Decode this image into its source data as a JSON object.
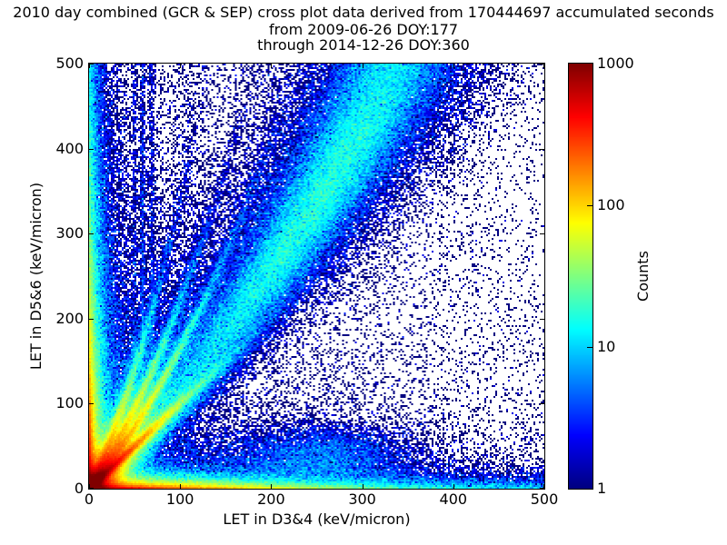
{
  "chart_data": {
    "type": "heatmap",
    "title": "2010 day combined (GCR & SEP) cross plot data derived from 170444697 accumulated seconds",
    "subtitle_from": "from 2009-06-26 DOY:177",
    "subtitle_through": "through 2014-12-26 DOY:360",
    "xlabel": "LET in D3&4 (keV/micron)",
    "ylabel": "LET in D5&6 (keV/micron)",
    "xlim": [
      0,
      500
    ],
    "ylim": [
      0,
      500
    ],
    "x_ticks": [
      0,
      100,
      200,
      300,
      400,
      500
    ],
    "y_ticks": [
      0,
      100,
      200,
      300,
      400,
      500
    ],
    "grid": false,
    "background_color": "#ffffff",
    "empty_bin_color": "#ffffff",
    "bins": [
      250,
      234
    ],
    "colorbar": {
      "label": "Counts",
      "scale": "log",
      "min": 1,
      "max": 1000,
      "ticks": [
        1,
        10,
        100,
        1000
      ],
      "position": "right"
    },
    "colormap": {
      "name": "jet",
      "stops": [
        {
          "t": 0.0,
          "c": "#000080"
        },
        {
          "t": 0.125,
          "c": "#0000ff"
        },
        {
          "t": 0.375,
          "c": "#00ffff"
        },
        {
          "t": 0.5,
          "c": "#80ff80"
        },
        {
          "t": 0.625,
          "c": "#ffff00"
        },
        {
          "t": 0.75,
          "c": "#ff8000"
        },
        {
          "t": 0.875,
          "c": "#ff0000"
        },
        {
          "t": 1.0,
          "c": "#800000"
        }
      ]
    },
    "density_model_counts_per_bin": [
      {
        "type": "radial",
        "amp": 2200,
        "scale": 9,
        "note": "origin hotspot, saturated dark red"
      },
      {
        "type": "ridge",
        "slope": 1.0,
        "curve": 0,
        "amp": 900,
        "width": 3,
        "decay": 40,
        "note": "bright equal-LET diagonal, red to ~(30,30), yellow to ~(70,70)"
      },
      {
        "type": "ridge",
        "slope": 1.0,
        "curve": 0,
        "amp": 130,
        "width": 9,
        "decay": 60
      },
      {
        "type": "ridge",
        "slope": 1.25,
        "curve": 0.004,
        "amp": 230,
        "width": 3.5,
        "decay": 70,
        "note": "fan streak 1"
      },
      {
        "type": "ridge",
        "slope": 1.25,
        "curve": 0.004,
        "amp": 55,
        "width": 9,
        "decay": 95
      },
      {
        "type": "ridge",
        "slope": 1.6,
        "curve": 0.006,
        "amp": 210,
        "width": 3.5,
        "decay": 65,
        "note": "fan streak 2"
      },
      {
        "type": "ridge",
        "slope": 1.6,
        "curve": 0.006,
        "amp": 50,
        "width": 9,
        "decay": 90
      },
      {
        "type": "ridge",
        "slope": 2.2,
        "curve": 0.012,
        "amp": 180,
        "width": 3.5,
        "decay": 60,
        "note": "fan streak 3"
      },
      {
        "type": "ridge",
        "slope": 2.2,
        "curve": 0.012,
        "amp": 45,
        "width": 9,
        "decay": 85
      },
      {
        "type": "exp2",
        "amp": 700,
        "sx": 70,
        "sy": 3,
        "note": "hot band hugging x-axis"
      },
      {
        "type": "exp2",
        "amp": 120,
        "sx": 150,
        "sy": 8
      },
      {
        "type": "exp2",
        "amp": 8,
        "sx": 600,
        "sy": 5,
        "note": "cyan speckle along bottom edge to x=500"
      },
      {
        "type": "exp2",
        "amp": 2.5,
        "sx": 900,
        "sy": 12
      },
      {
        "type": "exp2",
        "amp": 4,
        "sx": 250,
        "sy": 25
      },
      {
        "type": "exp2",
        "amp": 600,
        "sx": 3,
        "sy": 60,
        "note": "hot band hugging y-axis"
      },
      {
        "type": "exp2",
        "amp": 100,
        "sx": 8,
        "sy": 200
      },
      {
        "type": "exp2",
        "amp": 7,
        "sx": 5,
        "sy": 700,
        "note": "cyan left-edge column to y=500"
      },
      {
        "type": "exp2",
        "amp": 3,
        "sx": 14,
        "sy": 500
      },
      {
        "type": "exp2",
        "amp": 15,
        "sx": 35,
        "sy": 120,
        "note": "dense wedge above diagonal near origin"
      },
      {
        "type": "band",
        "a": 0.9,
        "b": -0.00046,
        "sigma0": 9,
        "sigma1": 0.045,
        "amp": 13,
        "peak_y": 340,
        "peak_w": 260,
        "note": "broad correlation band reaching top at x~300-370"
      },
      {
        "type": "band",
        "a": 0.9,
        "b": -0.00046,
        "sigma0": 20,
        "sigma1": 0.09,
        "amp": 3.5,
        "peak_y": 340,
        "peak_w": 300
      },
      {
        "type": "vstripe",
        "x0": 50,
        "amp": 1.8,
        "sigma": 1.6,
        "ydecay": 900,
        "note": "vertical streak"
      },
      {
        "type": "vstripe",
        "x0": 59,
        "amp": 3.0,
        "sigma": 1.6,
        "ydecay": 900,
        "note": "vertical streak"
      },
      {
        "type": "vstripe",
        "x0": 69,
        "amp": 2.0,
        "sigma": 2.0,
        "ydecay": 900,
        "note": "vertical streak"
      },
      {
        "type": "vstripe",
        "x0": 108,
        "amp": 0.5,
        "sigma": 8,
        "ydecay": 600,
        "note": "faint wide vertical streak"
      },
      {
        "type": "blob",
        "x0": 255,
        "y0": 38,
        "sx": 55,
        "sy": 20,
        "amp": 5,
        "note": "diffuse low cloud near (255,38)"
      },
      {
        "type": "exp2",
        "amp": 0.9,
        "sx": 130,
        "sy": 420,
        "note": "scattered background, denser at low x"
      },
      {
        "type": "exp2",
        "amp": 0.25,
        "sx": 550,
        "sy": 550
      },
      {
        "type": "uniform",
        "amp": 0.035,
        "note": "sparse isolated counts over whole plane"
      }
    ]
  }
}
